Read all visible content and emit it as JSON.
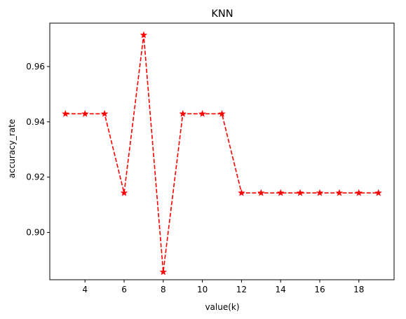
{
  "chart_data": {
    "type": "line",
    "title": "KNN",
    "xlabel": "value(k)",
    "ylabel": "accuracy_rate",
    "xlim": [
      2.2,
      19.8
    ],
    "ylim": [
      0.8829,
      0.9757
    ],
    "xticks": [
      4,
      6,
      8,
      10,
      12,
      14,
      16,
      18
    ],
    "yticks": [
      0.9,
      0.92,
      0.94,
      0.96
    ],
    "xtick_labels": [
      "4",
      "6",
      "8",
      "10",
      "12",
      "14",
      "16",
      "18"
    ],
    "ytick_labels": [
      "0.90",
      "0.92",
      "0.94",
      "0.96"
    ],
    "grid": false,
    "legend": "none",
    "series": [
      {
        "color": "#ff0000",
        "line_style": "dashed",
        "marker": "star",
        "x": [
          3,
          4,
          5,
          6,
          7,
          8,
          9,
          10,
          11,
          12,
          13,
          14,
          15,
          16,
          17,
          18,
          19
        ],
        "y": [
          0.9429,
          0.9429,
          0.9429,
          0.9143,
          0.9714,
          0.8857,
          0.9429,
          0.9429,
          0.9429,
          0.9143,
          0.9143,
          0.9143,
          0.9143,
          0.9143,
          0.9143,
          0.9143,
          0.9143
        ]
      }
    ]
  }
}
